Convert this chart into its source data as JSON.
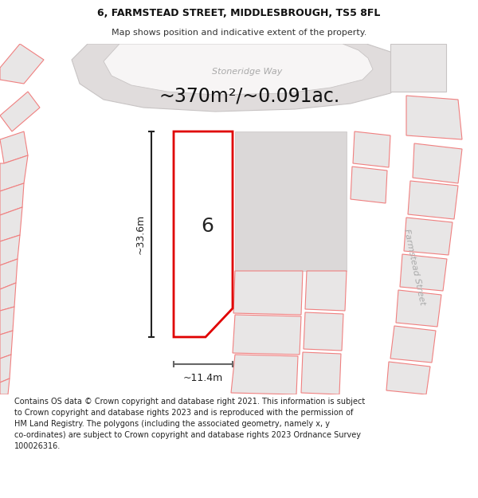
{
  "title": "6, FARMSTEAD STREET, MIDDLESBROUGH, TS5 8FL",
  "subtitle": "Map shows position and indicative extent of the property.",
  "area_text": "~370m²/~0.091ac.",
  "street_label": "Stoneridge Way",
  "street_label2": "Farmstead Street",
  "number_label": "6",
  "dim_height": "~33.6m",
  "dim_width": "~11.4m",
  "footer_text": "Contains OS data © Crown copyright and database right 2021. This information is subject\nto Crown copyright and database rights 2023 and is reproduced with the permission of\nHM Land Registry. The polygons (including the associated geometry, namely x, y\nco-ordinates) are subject to Crown copyright and database rights 2023 Ordnance Survey\n100026316.",
  "bg_color": "#ffffff",
  "map_bg": "#f7f5f5",
  "plot_red": "#e00000",
  "plot_fill": "#ffffff",
  "other_fill": "#e8e6e6",
  "other_edge": "#f08080",
  "road_fill": "#e0dcdc",
  "road_edge": "#c8c4c4",
  "dim_color": "#222222",
  "street_color": "#aaaaaa",
  "title_fontsize": 9,
  "subtitle_fontsize": 8,
  "area_fontsize": 17,
  "number_fontsize": 18,
  "dim_fontsize": 9,
  "street_fontsize": 8,
  "farmstead_fontsize": 8,
  "footer_fontsize": 7
}
